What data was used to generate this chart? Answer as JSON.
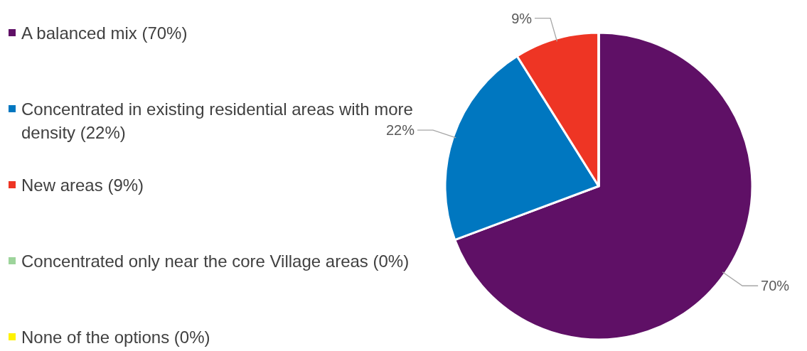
{
  "chart_data": {
    "type": "pie",
    "categories": [
      "A balanced mix (70%)",
      "Concentrated in existing residential areas with more density (22%)",
      "New areas (9%)",
      "Concentrated only near the core Village areas (0%)",
      "None of the options (0%)"
    ],
    "values": [
      70,
      22,
      9,
      0,
      0
    ],
    "colors": [
      "#5f1066",
      "#0077c0",
      "#ee3524",
      "#9dd49b",
      "#fff200"
    ],
    "value_labels": [
      "70%",
      "22%",
      "9%",
      null,
      null
    ],
    "legend": "left"
  }
}
